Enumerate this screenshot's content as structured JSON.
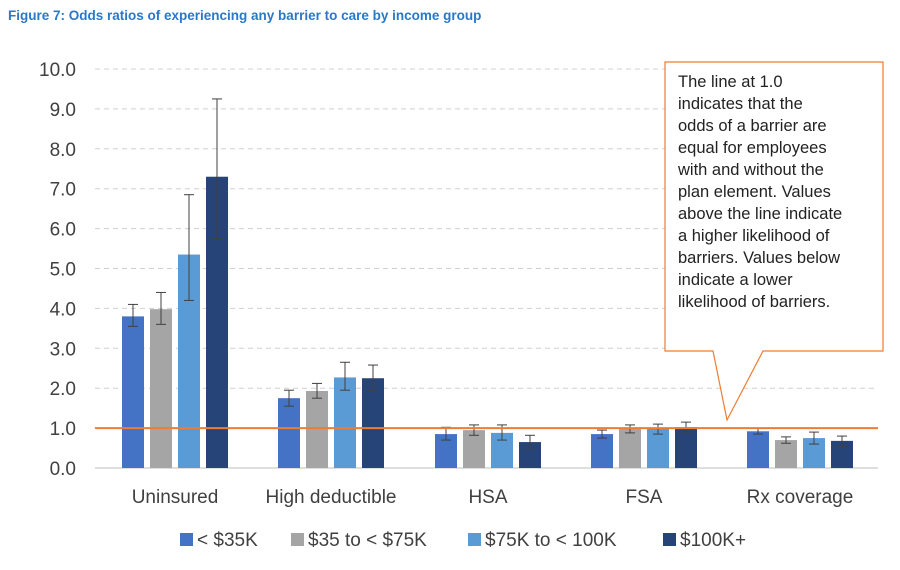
{
  "title": "Figure 7: Odds ratios of experiencing any barrier to care by income group",
  "colors": {
    "title": "#2a78c8",
    "reference_line": "#ed7d31",
    "callout_border": "#ed7d31",
    "grid": "#d0d0d0"
  },
  "chart_data": {
    "type": "bar",
    "categories": [
      "Uninsured",
      "High deductible",
      "HSA",
      "FSA",
      "Rx coverage"
    ],
    "series": [
      {
        "name": "< $35K",
        "color": "#4472c4",
        "values": [
          3.8,
          1.75,
          0.85,
          0.85,
          0.92
        ],
        "error_low": [
          3.55,
          1.55,
          0.7,
          0.75,
          0.85
        ],
        "error_high": [
          4.1,
          1.95,
          1.02,
          0.95,
          1.0
        ]
      },
      {
        "name": "$35 to < $75K",
        "color": "#a5a5a5",
        "values": [
          3.98,
          1.93,
          0.95,
          0.98,
          0.7
        ],
        "error_low": [
          3.6,
          1.75,
          0.82,
          0.88,
          0.62
        ],
        "error_high": [
          4.4,
          2.12,
          1.08,
          1.08,
          0.78
        ]
      },
      {
        "name": "$75K to < 100K",
        "color": "#5b9bd5",
        "values": [
          5.35,
          2.27,
          0.88,
          0.98,
          0.75
        ],
        "error_low": [
          4.2,
          1.95,
          0.7,
          0.85,
          0.6
        ],
        "error_high": [
          6.85,
          2.65,
          1.08,
          1.1,
          0.9
        ]
      },
      {
        "name": "$100K+",
        "color": "#264478",
        "values": [
          7.3,
          2.25,
          0.65,
          1.02,
          0.68
        ],
        "error_low": [
          5.75,
          1.95,
          0.5,
          0.9,
          0.55
        ],
        "error_high": [
          9.25,
          2.58,
          0.82,
          1.15,
          0.8
        ]
      }
    ],
    "ylim": [
      0,
      10
    ],
    "y_ticks": [
      "0.0",
      "1.0",
      "2.0",
      "3.0",
      "4.0",
      "5.0",
      "6.0",
      "7.0",
      "8.0",
      "9.0",
      "10.0"
    ],
    "reference_line": 1.0,
    "grid": "dashed horizontal",
    "legend_position": "bottom",
    "annotation": "The line at 1.0 indicates that the odds of a barrier are equal for employees with and without the plan element. Values above the line indicate a higher likelihood of barriers. Values below indicate a lower likelihood of barriers.",
    "annotation_lines": [
      "The line at 1.0",
      "indicates that the",
      "odds of a barrier are",
      "equal for employees",
      "with and without the",
      "plan element. Values",
      "above the line indicate",
      "a higher likelihood of",
      "barriers. Values below",
      "indicate a lower",
      "likelihood of barriers."
    ]
  }
}
